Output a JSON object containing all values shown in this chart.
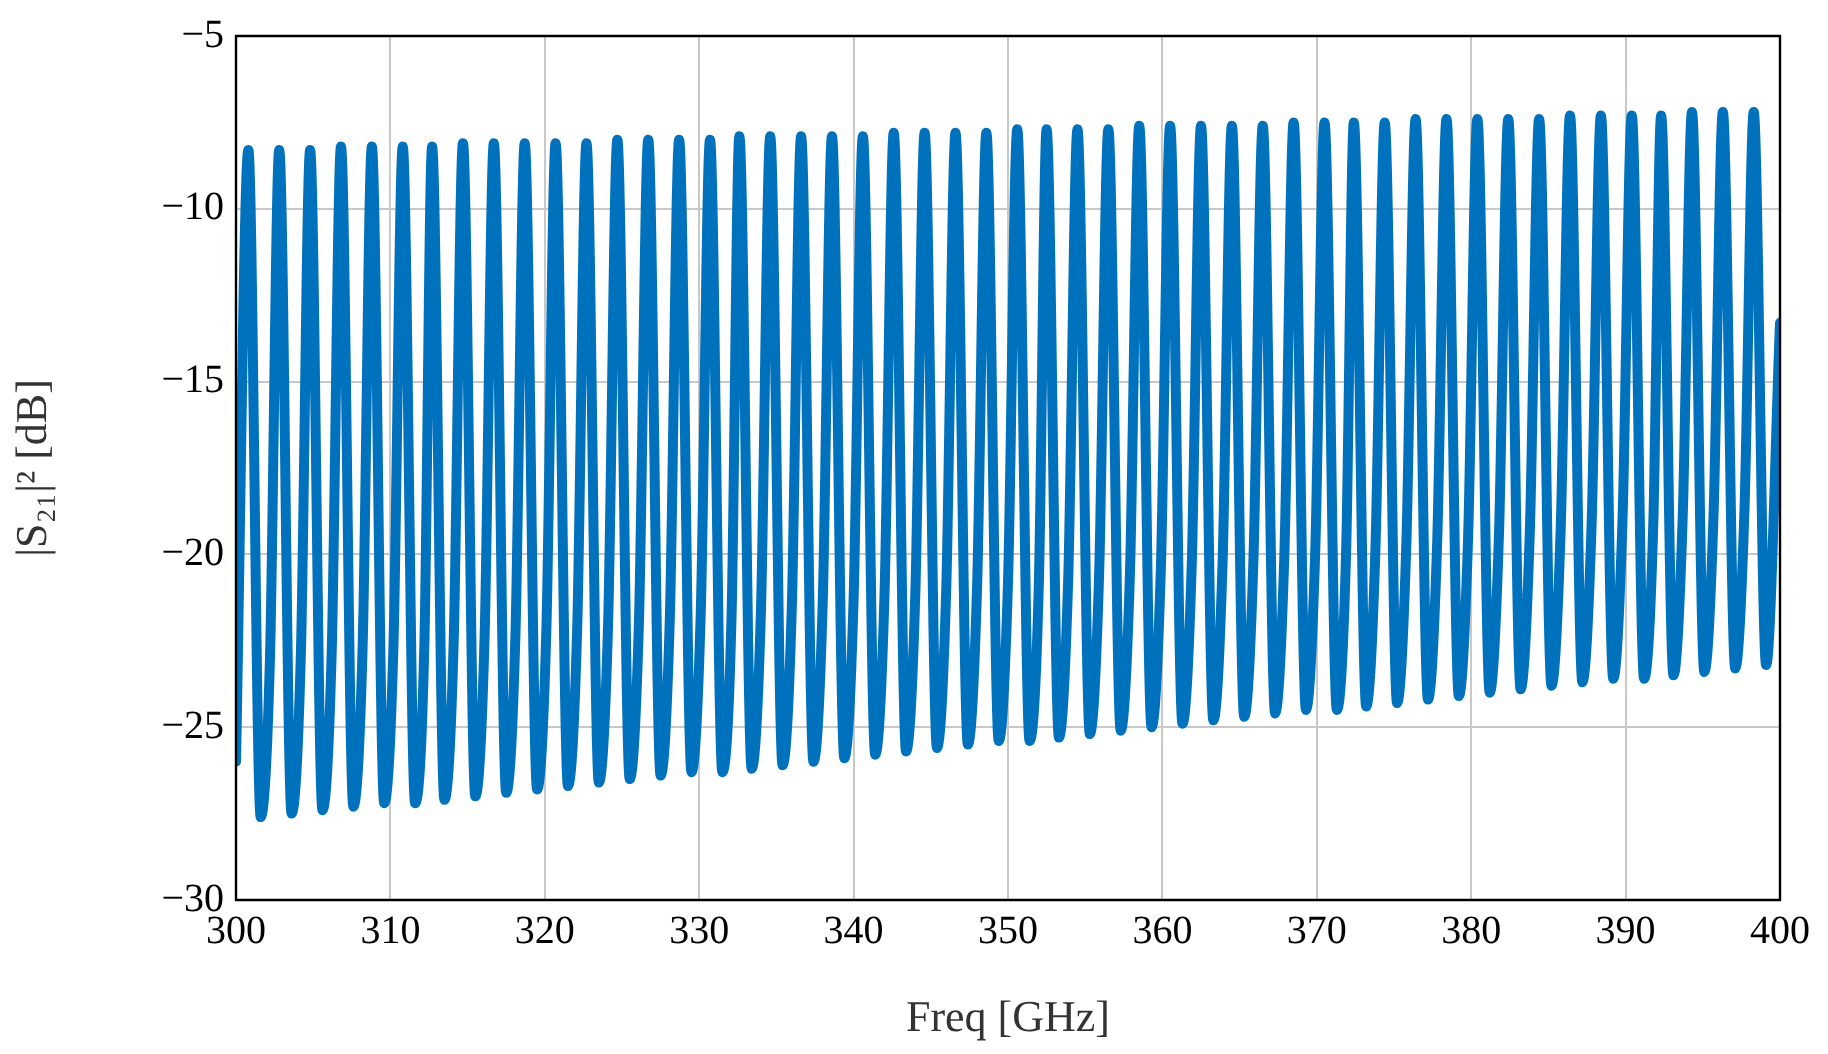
{
  "chart_data": {
    "type": "line",
    "xlabel": "Freq [GHz]",
    "ylabel": "|S₂₁|² [dB]",
    "xlim": [
      300,
      400
    ],
    "xticks": [
      300,
      310,
      320,
      330,
      340,
      350,
      360,
      370,
      380,
      390,
      400
    ],
    "ylim": [
      -30,
      -5
    ],
    "yticks": [
      {
        "value": -30,
        "label": "−30"
      },
      {
        "value": -25,
        "label": "−25"
      },
      {
        "value": -20,
        "label": "−20"
      },
      {
        "value": -15,
        "label": "−15"
      },
      {
        "value": -10,
        "label": "−10"
      },
      {
        "value": -5,
        "label": "−5"
      }
    ],
    "grid": true,
    "line_style": "solid",
    "marker": "none",
    "series": [
      {
        "color": "#0072bd",
        "x": [
          300,
          300.8,
          301.6,
          302.2,
          302.8,
          303.6,
          304.2,
          304.8,
          305.6,
          306.2,
          306.8,
          307.6,
          308.2,
          308.8,
          309.6,
          310.2,
          310.8,
          311.6,
          312.2,
          312.7,
          313.5,
          314.1,
          314.7,
          315.5,
          316.1,
          316.7,
          317.5,
          318.1,
          318.7,
          319.5,
          320.1,
          320.7,
          321.5,
          322.1,
          322.7,
          323.5,
          324.1,
          324.7,
          325.5,
          326.1,
          326.7,
          327.5,
          328.1,
          328.7,
          329.5,
          330.1,
          330.7,
          331.5,
          332.1,
          332.6,
          333.4,
          334.0,
          334.6,
          335.4,
          336.0,
          336.6,
          337.4,
          338.0,
          338.6,
          339.4,
          340.0,
          340.6,
          341.4,
          342.0,
          342.6,
          343.4,
          344.0,
          344.6,
          345.4,
          346.0,
          346.6,
          347.4,
          348.0,
          348.6,
          349.4,
          350.0,
          350.6,
          351.4,
          352.0,
          352.5,
          353.3,
          353.9,
          354.5,
          355.3,
          355.9,
          356.5,
          357.3,
          357.9,
          358.5,
          359.3,
          359.9,
          360.5,
          361.3,
          361.9,
          362.5,
          363.3,
          363.9,
          364.5,
          365.3,
          365.9,
          366.5,
          367.3,
          367.9,
          368.5,
          369.3,
          369.9,
          370.5,
          371.3,
          371.9,
          372.4,
          373.2,
          373.8,
          374.4,
          375.2,
          375.8,
          376.4,
          377.2,
          377.8,
          378.4,
          379.2,
          379.8,
          380.4,
          381.2,
          381.8,
          382.4,
          383.2,
          383.8,
          384.4,
          385.2,
          385.8,
          386.4,
          387.2,
          387.8,
          388.4,
          389.2,
          389.8,
          390.4,
          391.2,
          391.8,
          392.3,
          393.1,
          393.7,
          394.3,
          395.1,
          395.7,
          396.3,
          397.1,
          397.7,
          398.3,
          399.1,
          400
        ],
        "values": [
          -26.0,
          -8.3,
          -27.6,
          -23.0,
          -8.3,
          -27.5,
          -22.9,
          -8.3,
          -27.4,
          -22.8,
          -8.2,
          -27.3,
          -22.7,
          -8.2,
          -27.2,
          -22.6,
          -8.2,
          -27.2,
          -22.6,
          -8.2,
          -27.1,
          -22.5,
          -8.1,
          -27.0,
          -22.4,
          -8.1,
          -26.9,
          -22.3,
          -8.1,
          -26.8,
          -22.2,
          -8.1,
          -26.7,
          -22.1,
          -8.1,
          -26.6,
          -22.0,
          -8.0,
          -26.5,
          -21.9,
          -8.0,
          -26.4,
          -21.8,
          -8.0,
          -26.3,
          -21.7,
          -8.0,
          -26.3,
          -21.7,
          -7.9,
          -26.2,
          -21.6,
          -7.9,
          -26.1,
          -21.5,
          -7.9,
          -26.0,
          -21.4,
          -7.9,
          -25.9,
          -21.3,
          -7.9,
          -25.8,
          -21.2,
          -7.8,
          -25.7,
          -21.1,
          -7.8,
          -25.6,
          -21.0,
          -7.8,
          -25.5,
          -20.9,
          -7.8,
          -25.4,
          -20.8,
          -7.7,
          -25.4,
          -20.8,
          -7.7,
          -25.3,
          -20.7,
          -7.7,
          -25.2,
          -20.6,
          -7.7,
          -25.1,
          -20.5,
          -7.6,
          -25.0,
          -20.4,
          -7.6,
          -24.9,
          -20.3,
          -7.6,
          -24.8,
          -20.2,
          -7.6,
          -24.7,
          -20.1,
          -7.6,
          -24.6,
          -20.0,
          -7.5,
          -24.5,
          -19.9,
          -7.5,
          -24.5,
          -19.9,
          -7.5,
          -24.4,
          -19.8,
          -7.5,
          -24.3,
          -19.7,
          -7.4,
          -24.2,
          -19.6,
          -7.4,
          -24.1,
          -19.5,
          -7.4,
          -24.0,
          -19.4,
          -7.4,
          -23.9,
          -19.3,
          -7.4,
          -23.8,
          -19.2,
          -7.3,
          -23.7,
          -19.1,
          -7.3,
          -23.6,
          -19.0,
          -7.3,
          -23.6,
          -19.0,
          -7.3,
          -23.5,
          -18.9,
          -7.2,
          -23.4,
          -18.8,
          -7.2,
          -23.3,
          -18.7,
          -7.2,
          -23.2,
          -13.3
        ]
      }
    ]
  }
}
